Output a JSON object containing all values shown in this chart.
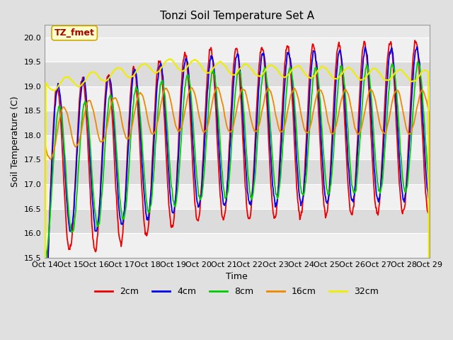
{
  "title": "Tonzi Soil Temperature Set A",
  "xlabel": "Time",
  "ylabel": "Soil Temperature (C)",
  "ylim": [
    15.5,
    20.25
  ],
  "annotation_text": "TZ_fmet",
  "annotation_color": "#aa0000",
  "annotation_bg": "#ffffcc",
  "annotation_border": "#ccaa00",
  "line_colors": {
    "2cm": "#ee0000",
    "4cm": "#0000ee",
    "8cm": "#00cc00",
    "16cm": "#ee8800",
    "32cm": "#eeee00"
  },
  "line_widths": {
    "2cm": 1.3,
    "4cm": 1.3,
    "8cm": 1.3,
    "16cm": 1.3,
    "32cm": 1.5
  },
  "yticks": [
    15.5,
    16.0,
    16.5,
    17.0,
    17.5,
    18.0,
    18.5,
    19.0,
    19.5,
    20.0
  ],
  "xtick_labels": [
    "Oct 14",
    "Oct 15",
    "Oct 16",
    "Oct 17",
    "Oct 18",
    "Oct 19",
    "Oct 20",
    "Oct 21",
    "Oct 22",
    "Oct 23",
    "Oct 24",
    "Oct 25",
    "Oct 26",
    "Oct 27",
    "Oct 28",
    "Oct 29"
  ],
  "bg_color": "#e0e0e0",
  "plot_bg_color": "#e8e8e8",
  "band_color_light": "#f0f0f0",
  "band_color_dark": "#dcdcdc",
  "grid_line_color": "#ffffff",
  "title_fontsize": 11,
  "axis_fontsize": 9,
  "tick_fontsize": 8
}
